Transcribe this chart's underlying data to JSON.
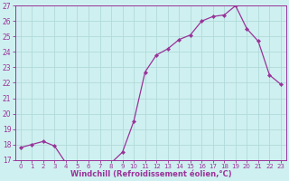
{
  "x": [
    0,
    1,
    2,
    3,
    4,
    5,
    6,
    7,
    8,
    9,
    10,
    11,
    12,
    13,
    14,
    15,
    16,
    17,
    18,
    19,
    20,
    21,
    22,
    23
  ],
  "y": [
    17.8,
    18.0,
    18.2,
    17.9,
    16.8,
    16.8,
    16.7,
    16.8,
    16.8,
    17.5,
    19.5,
    22.7,
    23.8,
    24.2,
    24.8,
    25.1,
    26.0,
    26.3,
    26.4,
    27.0,
    25.5,
    24.7,
    22.5,
    21.9
  ],
  "line_color": "#993399",
  "marker": "D",
  "marker_size": 2.2,
  "bg_color": "#cff0f0",
  "grid_color": "#b0dada",
  "xlabel": "Windchill (Refroidissement éolien,°C)",
  "ylim": [
    17,
    27
  ],
  "xlim": [
    -0.5,
    23.5
  ],
  "yticks": [
    17,
    18,
    19,
    20,
    21,
    22,
    23,
    24,
    25,
    26,
    27
  ],
  "xticks": [
    0,
    1,
    2,
    3,
    4,
    5,
    6,
    7,
    8,
    9,
    10,
    11,
    12,
    13,
    14,
    15,
    16,
    17,
    18,
    19,
    20,
    21,
    22,
    23
  ],
  "xlabel_fontsize": 6.0,
  "ytick_fontsize": 5.5,
  "xtick_fontsize": 5.0
}
